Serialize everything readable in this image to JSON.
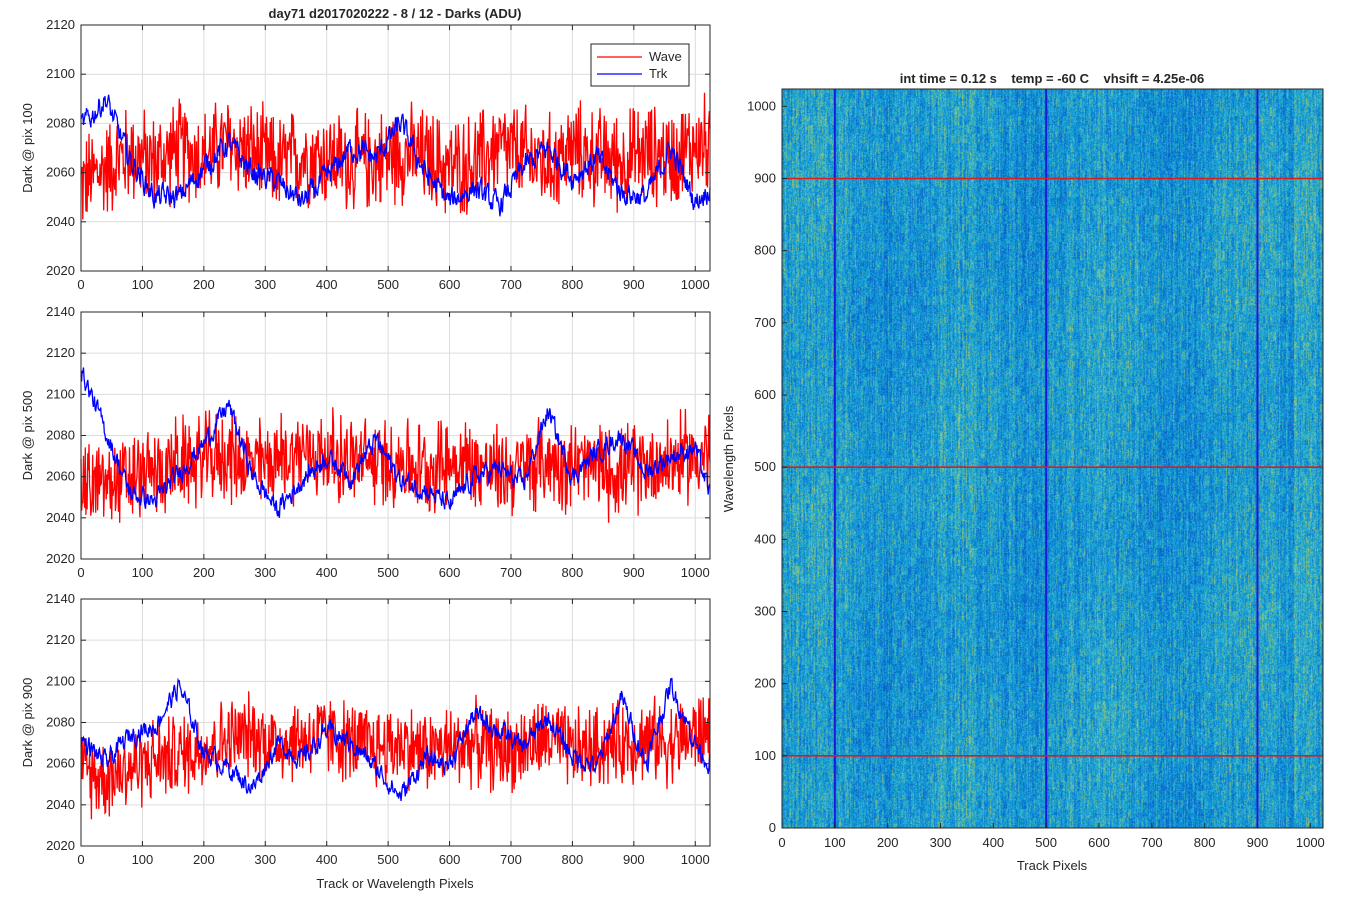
{
  "figure": {
    "title": "day71 d2017020222 - 8 / 12 - Darks (ADU)",
    "xlabel": "Track or Wavelength Pixels"
  },
  "image_panel": {
    "title": "int time = 0.12 s    temp = -60 C    vhsift = 4.25e-06",
    "xlabel": "Track Pixels",
    "ylabel": "Wavelength Pixels"
  },
  "colors": {
    "wave": "#ff0000",
    "trk": "#0000ff",
    "grid": "#dcdcdc",
    "axis": "#262626"
  },
  "chart_data": [
    {
      "type": "line",
      "ylabel": "Dark @ pix 100",
      "xlim": [
        0,
        1024
      ],
      "ylim": [
        2020,
        2120
      ],
      "xticks": [
        0,
        100,
        200,
        300,
        400,
        500,
        600,
        700,
        800,
        900,
        1000
      ],
      "yticks": [
        2020,
        2040,
        2060,
        2080,
        2100,
        2120
      ],
      "grid": true,
      "legend": {
        "position": "top-right",
        "entries": [
          "Wave",
          "Trk"
        ]
      },
      "x": [
        0,
        40,
        80,
        120,
        160,
        200,
        240,
        280,
        320,
        360,
        400,
        440,
        480,
        520,
        560,
        600,
        640,
        680,
        720,
        760,
        800,
        840,
        880,
        920,
        960,
        1000,
        1023
      ],
      "series": [
        {
          "name": "Wave",
          "color": "red",
          "center": [
            2055,
            2062,
            2068,
            2064,
            2070,
            2066,
            2072,
            2068,
            2063,
            2067,
            2066,
            2064,
            2065,
            2068,
            2066,
            2062,
            2064,
            2070,
            2067,
            2063,
            2069,
            2066,
            2065,
            2068,
            2066,
            2071,
            2072
          ],
          "noise": 24
        },
        {
          "name": "Trk",
          "color": "blue",
          "center": [
            2078,
            2090,
            2065,
            2050,
            2050,
            2062,
            2072,
            2060,
            2056,
            2048,
            2058,
            2070,
            2066,
            2080,
            2060,
            2048,
            2054,
            2046,
            2062,
            2070,
            2058,
            2066,
            2052,
            2050,
            2070,
            2048,
            2054
          ],
          "noise": 8
        }
      ]
    },
    {
      "type": "line",
      "ylabel": "Dark @ pix 500",
      "xlim": [
        0,
        1024
      ],
      "ylim": [
        2020,
        2140
      ],
      "xticks": [
        0,
        100,
        200,
        300,
        400,
        500,
        600,
        700,
        800,
        900,
        1000
      ],
      "yticks": [
        2020,
        2040,
        2060,
        2080,
        2100,
        2120,
        2140
      ],
      "grid": true,
      "x": [
        0,
        40,
        80,
        120,
        160,
        200,
        240,
        280,
        320,
        360,
        400,
        440,
        480,
        520,
        560,
        600,
        640,
        680,
        720,
        760,
        800,
        840,
        880,
        920,
        960,
        1000,
        1023
      ],
      "series": [
        {
          "name": "Wave",
          "color": "red",
          "center": [
            2055,
            2056,
            2058,
            2062,
            2066,
            2068,
            2070,
            2066,
            2068,
            2072,
            2070,
            2068,
            2066,
            2068,
            2064,
            2068,
            2066,
            2062,
            2064,
            2068,
            2066,
            2064,
            2062,
            2066,
            2068,
            2070,
            2072
          ],
          "noise": 26
        },
        {
          "name": "Trk",
          "color": "blue",
          "center": [
            2112,
            2082,
            2052,
            2048,
            2062,
            2076,
            2095,
            2060,
            2044,
            2058,
            2070,
            2060,
            2078,
            2058,
            2054,
            2046,
            2060,
            2064,
            2056,
            2092,
            2060,
            2072,
            2080,
            2062,
            2070,
            2074,
            2052
          ],
          "noise": 8
        }
      ]
    },
    {
      "type": "line",
      "ylabel": "Dark @ pix 900",
      "xlim": [
        0,
        1024
      ],
      "ylim": [
        2020,
        2140
      ],
      "xticks": [
        0,
        100,
        200,
        300,
        400,
        500,
        600,
        700,
        800,
        900,
        1000
      ],
      "yticks": [
        2020,
        2040,
        2060,
        2080,
        2100,
        2120,
        2140
      ],
      "grid": true,
      "x": [
        0,
        40,
        80,
        120,
        160,
        200,
        240,
        280,
        320,
        360,
        400,
        440,
        480,
        520,
        560,
        600,
        640,
        680,
        720,
        760,
        800,
        840,
        880,
        920,
        960,
        1000,
        1023
      ],
      "series": [
        {
          "name": "Wave",
          "color": "red",
          "center": [
            2056,
            2054,
            2058,
            2062,
            2064,
            2068,
            2072,
            2074,
            2070,
            2072,
            2074,
            2070,
            2068,
            2070,
            2066,
            2068,
            2070,
            2066,
            2068,
            2072,
            2066,
            2068,
            2070,
            2072,
            2070,
            2074,
            2076
          ],
          "noise": 24
        },
        {
          "name": "Trk",
          "color": "blue",
          "center": [
            2072,
            2060,
            2074,
            2078,
            2098,
            2066,
            2058,
            2048,
            2070,
            2062,
            2076,
            2070,
            2058,
            2044,
            2062,
            2060,
            2084,
            2076,
            2068,
            2082,
            2064,
            2058,
            2092,
            2060,
            2098,
            2070,
            2060
          ],
          "noise": 8
        }
      ]
    },
    {
      "type": "heatmap",
      "xlabel": "Track Pixels",
      "ylabel": "Wavelength Pixels",
      "xlim": [
        0,
        1024
      ],
      "ylim": [
        0,
        1024
      ],
      "xticks": [
        0,
        100,
        200,
        300,
        400,
        500,
        600,
        700,
        800,
        900,
        1000
      ],
      "yticks": [
        0,
        100,
        200,
        300,
        400,
        500,
        600,
        700,
        800,
        900,
        1000
      ],
      "colormap": "parula",
      "marker_lines_horizontal": [
        100,
        500,
        900
      ],
      "marker_lines_vertical": [
        100,
        500,
        900
      ]
    }
  ]
}
